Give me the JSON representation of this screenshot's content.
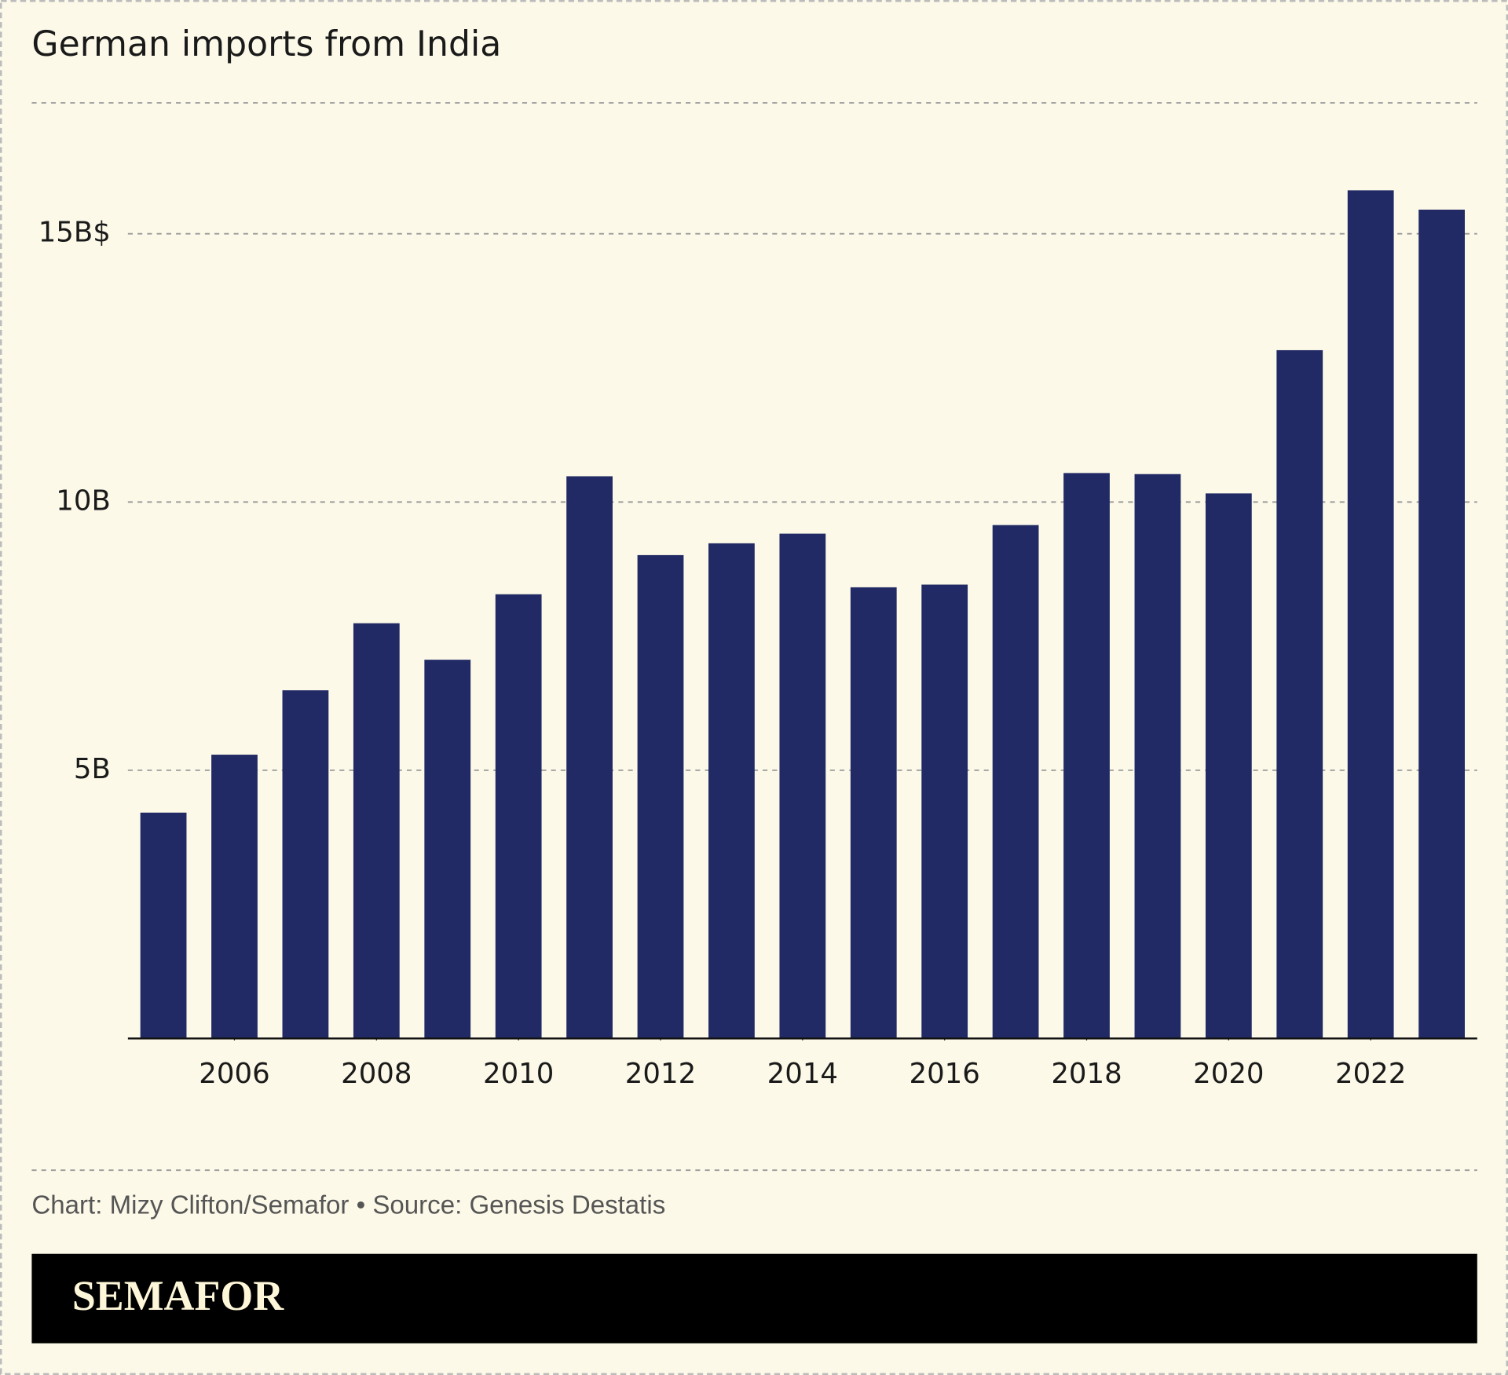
{
  "chart_data": {
    "type": "bar",
    "title": "German imports from India",
    "x": [
      2005,
      2006,
      2007,
      2008,
      2009,
      2010,
      2011,
      2012,
      2013,
      2014,
      2015,
      2016,
      2017,
      2018,
      2019,
      2020,
      2021,
      2022,
      2023
    ],
    "values": [
      4.21,
      5.29,
      6.49,
      7.74,
      7.06,
      8.28,
      10.48,
      9.01,
      9.23,
      9.41,
      8.41,
      8.46,
      9.57,
      10.54,
      10.52,
      10.16,
      12.83,
      15.81,
      15.45
    ],
    "color": "#212a65",
    "xlim": [
      2004.5,
      2023.5
    ],
    "xticks": [
      2006,
      2008,
      2010,
      2012,
      2014,
      2016,
      2018,
      2020,
      2022
    ],
    "ylim": [
      0,
      17.44
    ],
    "yticks": [
      {
        "value": 5,
        "label": "5B"
      },
      {
        "value": 10,
        "label": "10B"
      },
      {
        "value": 15,
        "label": "15B$"
      }
    ],
    "grid": true,
    "source": "Chart: Mizy Clifton/Semafor • Source: Genesis Destatis"
  },
  "brand": "SEMAFOR"
}
